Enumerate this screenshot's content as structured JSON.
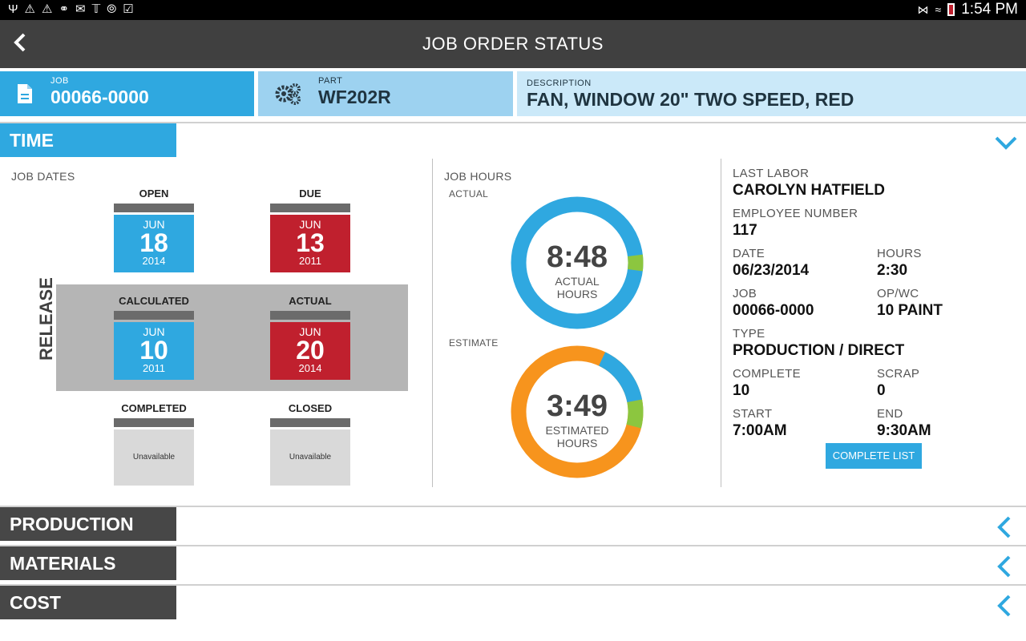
{
  "status_bar": {
    "left_icons": [
      "usb-icon",
      "warning-icon",
      "warning-icon",
      "key-icon",
      "mail-icon",
      "news-icon",
      "compass-icon",
      "clipboard-icon"
    ],
    "time": "1:54 PM"
  },
  "app_bar": {
    "title": "JOB ORDER STATUS"
  },
  "info": {
    "job_label": "JOB",
    "job_value": "00066-0000",
    "part_label": "PART",
    "part_value": "WF202R",
    "desc_label": "DESCRIPTION",
    "desc_value": "FAN, WINDOW 20\" TWO SPEED, RED"
  },
  "sections": {
    "time": "TIME",
    "production": "PRODUCTION",
    "materials": "MATERIALS",
    "cost": "COST"
  },
  "job_dates": {
    "heading": "JOB DATES",
    "release_label": "RELEASE",
    "open": {
      "caption": "OPEN",
      "month": "JUN",
      "day": "18",
      "year": "2014"
    },
    "due": {
      "caption": "DUE",
      "month": "JUN",
      "day": "13",
      "year": "2011"
    },
    "calculated": {
      "caption": "CALCULATED",
      "month": "JUN",
      "day": "10",
      "year": "2011"
    },
    "actual": {
      "caption": "ACTUAL",
      "month": "JUN",
      "day": "20",
      "year": "2014"
    },
    "completed": {
      "caption": "COMPLETED",
      "text": "Unavailable"
    },
    "closed": {
      "caption": "CLOSED",
      "text": "Unavailable"
    }
  },
  "job_hours": {
    "heading": "JOB HOURS",
    "actual_label": "ACTUAL",
    "actual_time": "8:48",
    "actual_sub1": "ACTUAL",
    "actual_sub2": "HOURS",
    "actual_green_fraction": 0.04,
    "estimate_label": "ESTIMATE",
    "estimate_time": "3:49",
    "estimate_sub1": "ESTIMATED",
    "estimate_sub2": "HOURS",
    "estimate_blue_fraction": 0.15,
    "estimate_green_fraction": 0.07,
    "colors": {
      "blue": "#2fa8e0",
      "green": "#8cc63f",
      "orange": "#f7941d"
    }
  },
  "last_labor": {
    "heading": "LAST LABOR",
    "name": "CAROLYN HATFIELD",
    "employee_number_label": "EMPLOYEE NUMBER",
    "employee_number": "117",
    "date_label": "DATE",
    "date": "06/23/2014",
    "hours_label": "HOURS",
    "hours": "2:30",
    "job_label": "JOB",
    "job": "00066-0000",
    "opwc_label": "OP/WC",
    "opwc": "10 PAINT",
    "type_label": "TYPE",
    "type": "PRODUCTION / DIRECT",
    "complete_label": "COMPLETE",
    "complete": "10",
    "scrap_label": "SCRAP",
    "scrap": "0",
    "start_label": "START",
    "start": "7:00AM",
    "end_label": "END",
    "end": "9:30AM",
    "complete_list_button": "COMPLETE LIST"
  }
}
